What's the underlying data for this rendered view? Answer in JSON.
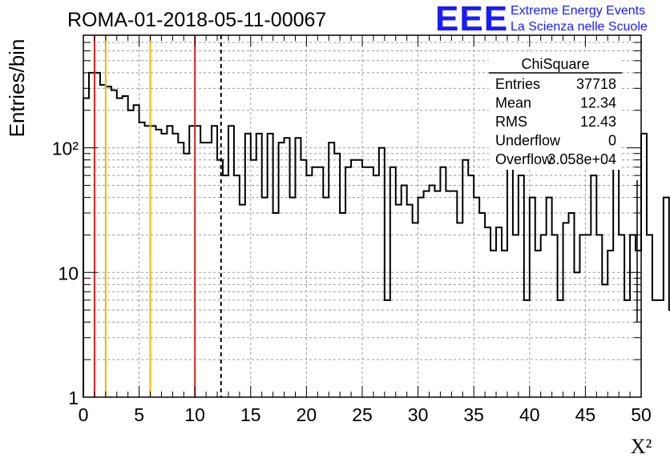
{
  "chart_data": {
    "type": "bar",
    "title": "ROMA-01-2018-05-11-00067",
    "xlabel": "X²",
    "ylabel": "Entries/bin",
    "xlim": [
      0,
      50
    ],
    "ylim": [
      1,
      800
    ],
    "yscale": "log",
    "grid": true,
    "style": "step-histogram",
    "bin_width": 0.5,
    "x_ticks": [
      "0",
      "5",
      "10",
      "15",
      "20",
      "25",
      "30",
      "35",
      "40",
      "45",
      "50"
    ],
    "y_ticks": [
      {
        "value": 1,
        "label": "1"
      },
      {
        "value": 10,
        "label": "10"
      },
      {
        "value": 100,
        "label": "10²"
      }
    ],
    "values": [
      250,
      400,
      400,
      320,
      310,
      290,
      250,
      260,
      200,
      220,
      160,
      150,
      150,
      140,
      130,
      150,
      130,
      110,
      90,
      150,
      150,
      110,
      110,
      150,
      80,
      60,
      150,
      60,
      35,
      130,
      80,
      130,
      40,
      130,
      30,
      110,
      120,
      40,
      120,
      80,
      60,
      70,
      70,
      40,
      110,
      90,
      30,
      70,
      80,
      80,
      70,
      70,
      60,
      100,
      6,
      70,
      35,
      50,
      35,
      25,
      40,
      45,
      50,
      45,
      70,
      45,
      45,
      25,
      80,
      60,
      40,
      30,
      23,
      15,
      23,
      15,
      80,
      20,
      60,
      6,
      40,
      15,
      20,
      40,
      20,
      6,
      25,
      30,
      10,
      20,
      20,
      60,
      20,
      8,
      15,
      130,
      20,
      6,
      20,
      15,
      130,
      20,
      6,
      6,
      40,
      5,
      20,
      7,
      6,
      7,
      6,
      110,
      15,
      20,
      8,
      70,
      20,
      15,
      15,
      15,
      70,
      7,
      7,
      10,
      6,
      20,
      40,
      30,
      15,
      20,
      20,
      4,
      6,
      20,
      30,
      40,
      10,
      4,
      3,
      7,
      15,
      30,
      70,
      10,
      10,
      8,
      25,
      30,
      30,
      15,
      100,
      70,
      40,
      30,
      4,
      20,
      35,
      30,
      4,
      8,
      20,
      40,
      30,
      30,
      60,
      10,
      30,
      60,
      40,
      3,
      20,
      40,
      10,
      40,
      30,
      40,
      4,
      4,
      20,
      15,
      30,
      40,
      15,
      20,
      70,
      20,
      20,
      30,
      4,
      6,
      3,
      20,
      60,
      20,
      15,
      3,
      4,
      20,
      40,
      30,
      4,
      2,
      20,
      20,
      10,
      20,
      40,
      20,
      20,
      20,
      5,
      4,
      3,
      10,
      20,
      40,
      4,
      3,
      8,
      4,
      30,
      20,
      40,
      30,
      15,
      20,
      20,
      10,
      4,
      20,
      8,
      20,
      20,
      30,
      40,
      6,
      20,
      10,
      20,
      20,
      20,
      10,
      40,
      40,
      10,
      30,
      20,
      20,
      30,
      20
    ],
    "markers": [
      {
        "x": 1,
        "color": "#e02020",
        "style": "solid"
      },
      {
        "x": 2,
        "color": "#f0b800",
        "style": "solid"
      },
      {
        "x": 6,
        "color": "#f0b800",
        "style": "solid"
      },
      {
        "x": 10,
        "color": "#e02020",
        "style": "solid"
      },
      {
        "x": 12.34,
        "color": "#000000",
        "style": "dashed"
      }
    ],
    "stats": {
      "name": "ChiSquare",
      "rows": [
        {
          "label": "Entries",
          "value": "37718"
        },
        {
          "label": "Mean",
          "value": "12.34"
        },
        {
          "label": "RMS",
          "value": "12.43"
        },
        {
          "label": "Underflow",
          "value": "0"
        },
        {
          "label": "Overflow",
          "value": "3.058e+04"
        }
      ],
      "placement": "top-right"
    },
    "logo": {
      "mark": "EEE",
      "line1": "Extreme Energy Events",
      "line2": "La Scienza nelle Scuole",
      "color": "#1a1aff"
    }
  }
}
